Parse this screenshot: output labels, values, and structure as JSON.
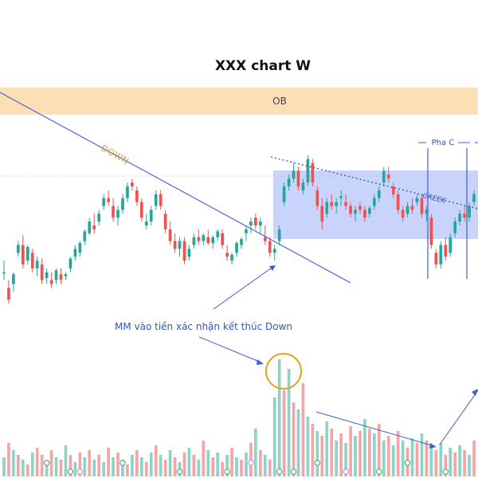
{
  "chart_data": {
    "type": "candlestick",
    "title": "XXX chart W",
    "xlabel": "",
    "ylabel": "",
    "ylim": [
      0,
      100
    ],
    "colors": {
      "up": "#26a69a",
      "down": "#ef5350",
      "vol_up": "#8fd3c7",
      "vol_down": "#f4a6a6",
      "ob_zone": "#fbd9a8",
      "trading_range": "#9db0fb",
      "trendline": "#3f5ed1",
      "circle": "#e3a321",
      "arrow": "#3f5ed1"
    },
    "candles": [
      [
        36,
        42,
        32,
        36
      ],
      [
        28,
        32,
        20,
        22
      ],
      [
        30,
        36,
        26,
        35
      ],
      [
        46,
        52,
        44,
        50
      ],
      [
        50,
        55,
        38,
        40
      ],
      [
        42,
        50,
        40,
        49
      ],
      [
        46,
        48,
        36,
        38
      ],
      [
        38,
        44,
        34,
        42
      ],
      [
        40,
        43,
        30,
        32
      ],
      [
        33,
        38,
        30,
        36
      ],
      [
        32,
        36,
        28,
        30
      ],
      [
        32,
        38,
        30,
        37
      ],
      [
        35,
        38,
        30,
        32
      ],
      [
        34,
        36,
        32,
        35
      ],
      [
        38,
        44,
        36,
        43
      ],
      [
        44,
        50,
        42,
        48
      ],
      [
        46,
        52,
        44,
        51
      ],
      [
        52,
        58,
        50,
        57
      ],
      [
        56,
        64,
        55,
        62
      ],
      [
        60,
        66,
        56,
        58
      ],
      [
        62,
        68,
        60,
        66
      ],
      [
        70,
        76,
        68,
        74
      ],
      [
        74,
        78,
        70,
        72
      ],
      [
        70,
        74,
        62,
        64
      ],
      [
        64,
        70,
        60,
        68
      ],
      [
        68,
        76,
        66,
        74
      ],
      [
        74,
        82,
        72,
        80
      ],
      [
        82,
        84,
        78,
        80
      ],
      [
        78,
        80,
        70,
        72
      ],
      [
        72,
        74,
        62,
        64
      ],
      [
        60,
        66,
        58,
        62
      ],
      [
        62,
        70,
        60,
        68
      ],
      [
        70,
        78,
        68,
        76
      ],
      [
        76,
        78,
        68,
        70
      ],
      [
        66,
        68,
        56,
        58
      ],
      [
        58,
        62,
        50,
        52
      ],
      [
        52,
        56,
        46,
        48
      ],
      [
        48,
        54,
        44,
        52
      ],
      [
        52,
        54,
        40,
        42
      ],
      [
        44,
        50,
        42,
        48
      ],
      [
        50,
        56,
        48,
        54
      ],
      [
        54,
        58,
        50,
        52
      ],
      [
        52,
        56,
        50,
        55
      ],
      [
        54,
        58,
        50,
        51
      ],
      [
        51,
        55,
        48,
        54
      ],
      [
        54,
        58,
        52,
        57
      ],
      [
        56,
        58,
        48,
        50
      ],
      [
        46,
        50,
        42,
        44
      ],
      [
        42,
        46,
        40,
        45
      ],
      [
        46,
        52,
        44,
        51
      ],
      [
        50,
        54,
        48,
        53
      ],
      [
        56,
        60,
        52,
        58
      ],
      [
        60,
        64,
        56,
        62
      ],
      [
        64,
        66,
        58,
        60
      ],
      [
        60,
        64,
        56,
        62
      ],
      [
        54,
        60,
        50,
        52
      ],
      [
        52,
        54,
        44,
        46
      ],
      [
        46,
        50,
        42,
        48
      ],
      [
        52,
        60,
        50,
        58
      ],
      [
        72,
        82,
        70,
        80
      ],
      [
        80,
        86,
        78,
        84
      ],
      [
        84,
        92,
        82,
        88
      ],
      [
        88,
        90,
        78,
        80
      ],
      [
        78,
        84,
        76,
        82
      ],
      [
        82,
        96,
        80,
        94
      ],
      [
        92,
        94,
        80,
        82
      ],
      [
        78,
        80,
        68,
        70
      ],
      [
        70,
        74,
        58,
        62
      ],
      [
        66,
        74,
        64,
        72
      ],
      [
        72,
        76,
        68,
        70
      ],
      [
        70,
        74,
        66,
        72
      ],
      [
        74,
        78,
        70,
        75
      ],
      [
        72,
        76,
        68,
        70
      ],
      [
        70,
        72,
        64,
        66
      ],
      [
        66,
        70,
        62,
        68
      ],
      [
        70,
        72,
        66,
        68
      ],
      [
        68,
        70,
        62,
        64
      ],
      [
        66,
        70,
        64,
        69
      ],
      [
        70,
        76,
        68,
        74
      ],
      [
        74,
        80,
        72,
        78
      ],
      [
        82,
        90,
        80,
        88
      ],
      [
        86,
        90,
        82,
        84
      ],
      [
        80,
        82,
        74,
        76
      ],
      [
        76,
        78,
        66,
        68
      ],
      [
        68,
        70,
        62,
        64
      ],
      [
        66,
        72,
        64,
        70
      ],
      [
        70,
        74,
        66,
        68
      ],
      [
        72,
        76,
        70,
        74
      ],
      [
        74,
        76,
        64,
        66
      ],
      [
        66,
        70,
        62,
        68
      ],
      [
        64,
        66,
        48,
        50
      ],
      [
        46,
        48,
        38,
        40
      ],
      [
        40,
        52,
        38,
        50
      ],
      [
        50,
        54,
        42,
        44
      ],
      [
        46,
        56,
        44,
        54
      ],
      [
        56,
        64,
        54,
        62
      ],
      [
        62,
        68,
        60,
        66
      ],
      [
        66,
        70,
        62,
        64
      ],
      [
        64,
        72,
        62,
        70
      ],
      [
        72,
        78,
        70,
        76
      ]
    ],
    "volume": [
      [
        16,
        1
      ],
      [
        28,
        0
      ],
      [
        22,
        1
      ],
      [
        18,
        0
      ],
      [
        14,
        1
      ],
      [
        10,
        0
      ],
      [
        20,
        1
      ],
      [
        24,
        0
      ],
      [
        18,
        0
      ],
      [
        12,
        1
      ],
      [
        22,
        0
      ],
      [
        16,
        1
      ],
      [
        14,
        0
      ],
      [
        26,
        1
      ],
      [
        18,
        0
      ],
      [
        12,
        1
      ],
      [
        20,
        0
      ],
      [
        16,
        1
      ],
      [
        22,
        0
      ],
      [
        14,
        1
      ],
      [
        18,
        0
      ],
      [
        12,
        1
      ],
      [
        24,
        0
      ],
      [
        16,
        1
      ],
      [
        20,
        0
      ],
      [
        14,
        1
      ],
      [
        10,
        0
      ],
      [
        18,
        1
      ],
      [
        22,
        0
      ],
      [
        16,
        1
      ],
      [
        12,
        0
      ],
      [
        20,
        1
      ],
      [
        26,
        0
      ],
      [
        18,
        1
      ],
      [
        14,
        0
      ],
      [
        22,
        1
      ],
      [
        16,
        0
      ],
      [
        12,
        1
      ],
      [
        20,
        0
      ],
      [
        24,
        1
      ],
      [
        18,
        0
      ],
      [
        14,
        1
      ],
      [
        30,
        0
      ],
      [
        22,
        1
      ],
      [
        16,
        0
      ],
      [
        20,
        1
      ],
      [
        12,
        0
      ],
      [
        18,
        1
      ],
      [
        24,
        0
      ],
      [
        16,
        1
      ],
      [
        14,
        0
      ],
      [
        20,
        1
      ],
      [
        28,
        0
      ],
      [
        40,
        1
      ],
      [
        22,
        0
      ],
      [
        18,
        1
      ],
      [
        14,
        0
      ],
      [
        66,
        1
      ],
      [
        98,
        1
      ],
      [
        72,
        0
      ],
      [
        90,
        1
      ],
      [
        62,
        0
      ],
      [
        56,
        1
      ],
      [
        78,
        0
      ],
      [
        50,
        1
      ],
      [
        44,
        0
      ],
      [
        38,
        1
      ],
      [
        34,
        0
      ],
      [
        46,
        1
      ],
      [
        40,
        0
      ],
      [
        30,
        1
      ],
      [
        36,
        0
      ],
      [
        28,
        1
      ],
      [
        42,
        0
      ],
      [
        34,
        1
      ],
      [
        38,
        0
      ],
      [
        48,
        1
      ],
      [
        40,
        0
      ],
      [
        36,
        1
      ],
      [
        44,
        0
      ],
      [
        30,
        1
      ],
      [
        34,
        0
      ],
      [
        26,
        1
      ],
      [
        38,
        0
      ],
      [
        30,
        1
      ],
      [
        24,
        0
      ],
      [
        32,
        1
      ],
      [
        28,
        0
      ],
      [
        36,
        1
      ],
      [
        30,
        0
      ],
      [
        26,
        1
      ],
      [
        22,
        0
      ],
      [
        28,
        1
      ],
      [
        18,
        0
      ],
      [
        24,
        1
      ],
      [
        20,
        0
      ],
      [
        26,
        1
      ],
      [
        22,
        0
      ],
      [
        18,
        1
      ],
      [
        30,
        0
      ]
    ],
    "annotations": {
      "ob_label": "OB",
      "down_label": "DOWN",
      "creek_label": "CREEK",
      "phase_label": "Pha C",
      "note": "MM vào tiền xác nhận kết thúc Down"
    }
  }
}
